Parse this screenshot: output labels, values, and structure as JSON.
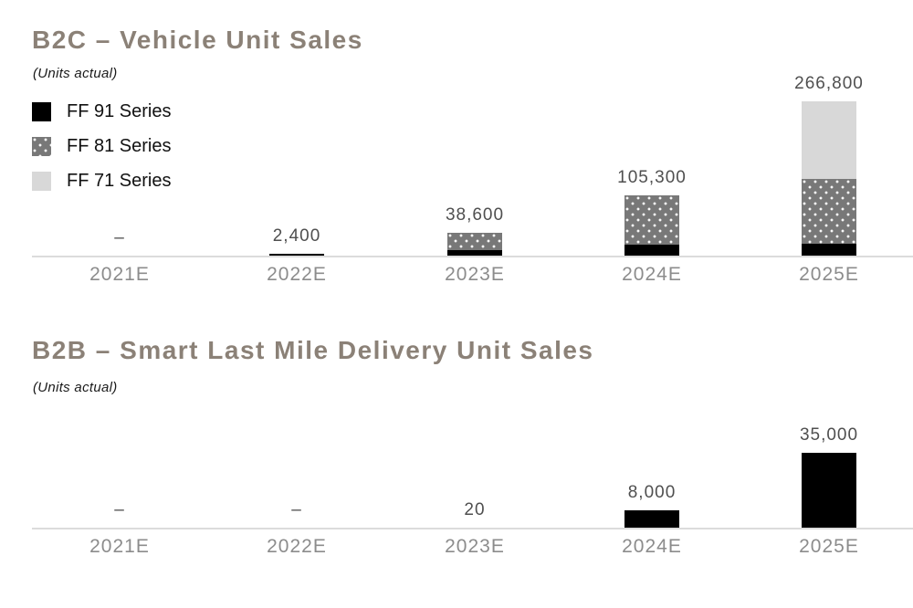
{
  "colors": {
    "background": "#ffffff",
    "title_text": "#8b8177",
    "subtitle_text": "#1a1a1a",
    "value_label_text": "#4f4f4f",
    "category_label_text": "#8c8c8c",
    "legend_label_text": "#111111",
    "axis_line": "#dcdcdc",
    "ff91_series": "#000000",
    "ff81_series": "#787878",
    "ff81_series_dots": "#ffffff",
    "ff71_series": "#d8d8d8"
  },
  "chart_data": [
    {
      "type": "bar",
      "stacked": true,
      "title": "B2C – Vehicle Unit Sales",
      "subtitle": "(Units actual)",
      "categories": [
        "2021E",
        "2022E",
        "2023E",
        "2024E",
        "2025E"
      ],
      "series": [
        {
          "name": "FF 91 Series",
          "swatch": "ff91",
          "values": [
            0,
            2400,
            9000,
            19000,
            20000
          ]
        },
        {
          "name": "FF 81 Series",
          "swatch": "ff81",
          "values": [
            0,
            0,
            29600,
            86300,
            112000
          ]
        },
        {
          "name": "FF 71 Series",
          "swatch": "ff71",
          "values": [
            0,
            0,
            0,
            0,
            134800
          ]
        }
      ],
      "totals": [
        0,
        2400,
        38600,
        105300,
        266800
      ],
      "value_labels": [
        "–",
        "2,400",
        "38,600",
        "105,300",
        "266,800"
      ],
      "legend": [
        {
          "label": "FF 91 Series",
          "swatch": "ff91"
        },
        {
          "label": "FF 81 Series",
          "swatch": "ff81"
        },
        {
          "label": "FF 71 Series",
          "swatch": "ff71"
        }
      ],
      "legend_position": "top-left",
      "ylim": [
        0,
        280000
      ],
      "grid": false,
      "axes_shown": "x-baseline-only"
    },
    {
      "type": "bar",
      "stacked": false,
      "title": "B2B – Smart Last Mile Delivery Unit Sales",
      "subtitle": "(Units actual)",
      "categories": [
        "2021E",
        "2022E",
        "2023E",
        "2024E",
        "2025E"
      ],
      "series": [
        {
          "swatch": "ff91",
          "values": [
            0,
            0,
            20,
            8000,
            35000
          ]
        }
      ],
      "totals": [
        0,
        0,
        20,
        8000,
        35000
      ],
      "value_labels": [
        "–",
        "–",
        "20",
        "8,000",
        "35,000"
      ],
      "ylim": [
        0,
        36000
      ],
      "grid": false,
      "axes_shown": "x-baseline-only"
    }
  ]
}
